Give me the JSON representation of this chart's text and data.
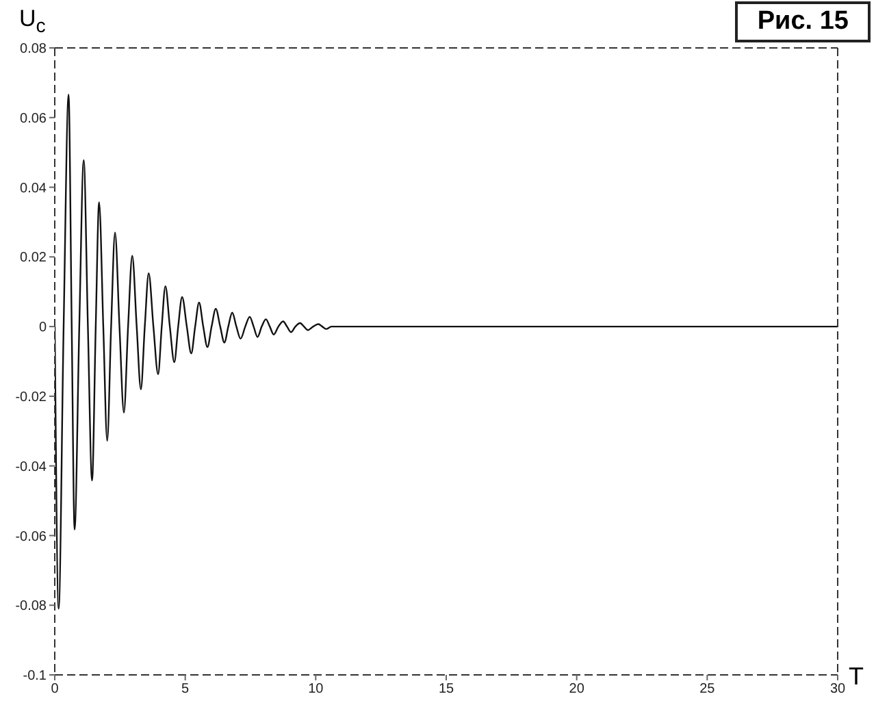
{
  "chart_data": {
    "type": "line",
    "title": "Рис. 15",
    "xlabel": "T",
    "ylabel": "U$_{c}$",
    "x": [
      0,
      0.15,
      0.34,
      0.53,
      0.65,
      0.76,
      0.94,
      1.11,
      1.27,
      1.43,
      1.57,
      1.7,
      1.86,
      2.01,
      2.16,
      2.31,
      2.48,
      2.65,
      2.81,
      2.97,
      3.14,
      3.3,
      3.45,
      3.6,
      3.78,
      3.96,
      4.1,
      4.24,
      4.41,
      4.58,
      4.73,
      4.88,
      5.06,
      5.23,
      5.38,
      5.53,
      5.69,
      5.85,
      6.01,
      6.17,
      6.34,
      6.5,
      6.65,
      6.8,
      6.96,
      7.12,
      7.3,
      7.47,
      7.62,
      7.77,
      7.93,
      8.09,
      8.24,
      8.39,
      8.57,
      8.75,
      8.9,
      9.05,
      9.22,
      9.4,
      9.55,
      9.7,
      9.9,
      10.1,
      10.25,
      10.4,
      10.6,
      30
    ],
    "series": [
      {
        "color": "#111111",
        "values": [
          0,
          -0.081,
          0,
          0.0666,
          0,
          -0.0583,
          0,
          0.0478,
          0,
          -0.0442,
          0,
          0.0357,
          0,
          -0.0328,
          0,
          0.027,
          0,
          -0.0247,
          0,
          0.0203,
          0,
          -0.018,
          0,
          0.0153,
          0,
          -0.0137,
          0,
          0.0116,
          0,
          -0.0102,
          0,
          0.0085,
          0,
          -0.0077,
          0,
          0.0069,
          0,
          -0.0059,
          0,
          0.0051,
          0,
          -0.0046,
          0,
          0.004,
          0,
          -0.0035,
          0,
          0.0028,
          0,
          -0.003,
          0,
          0.0021,
          0,
          -0.0023,
          0,
          0.0015,
          0,
          -0.0016,
          0,
          0.001,
          0,
          -0.001,
          0,
          0.0007,
          0,
          -0.0007,
          0,
          0
        ]
      }
    ],
    "xlim": [
      0,
      30
    ],
    "xticks": [
      0,
      5,
      10,
      15,
      20,
      25,
      30
    ],
    "ylim": [
      -0.1,
      0.08
    ],
    "yticks": [
      -0.1,
      -0.08,
      -0.06,
      -0.04,
      -0.02,
      0,
      0.02,
      0.04,
      0.06,
      0.08
    ],
    "grid": false,
    "legend": false,
    "marker": "none",
    "line_style": "solid"
  }
}
